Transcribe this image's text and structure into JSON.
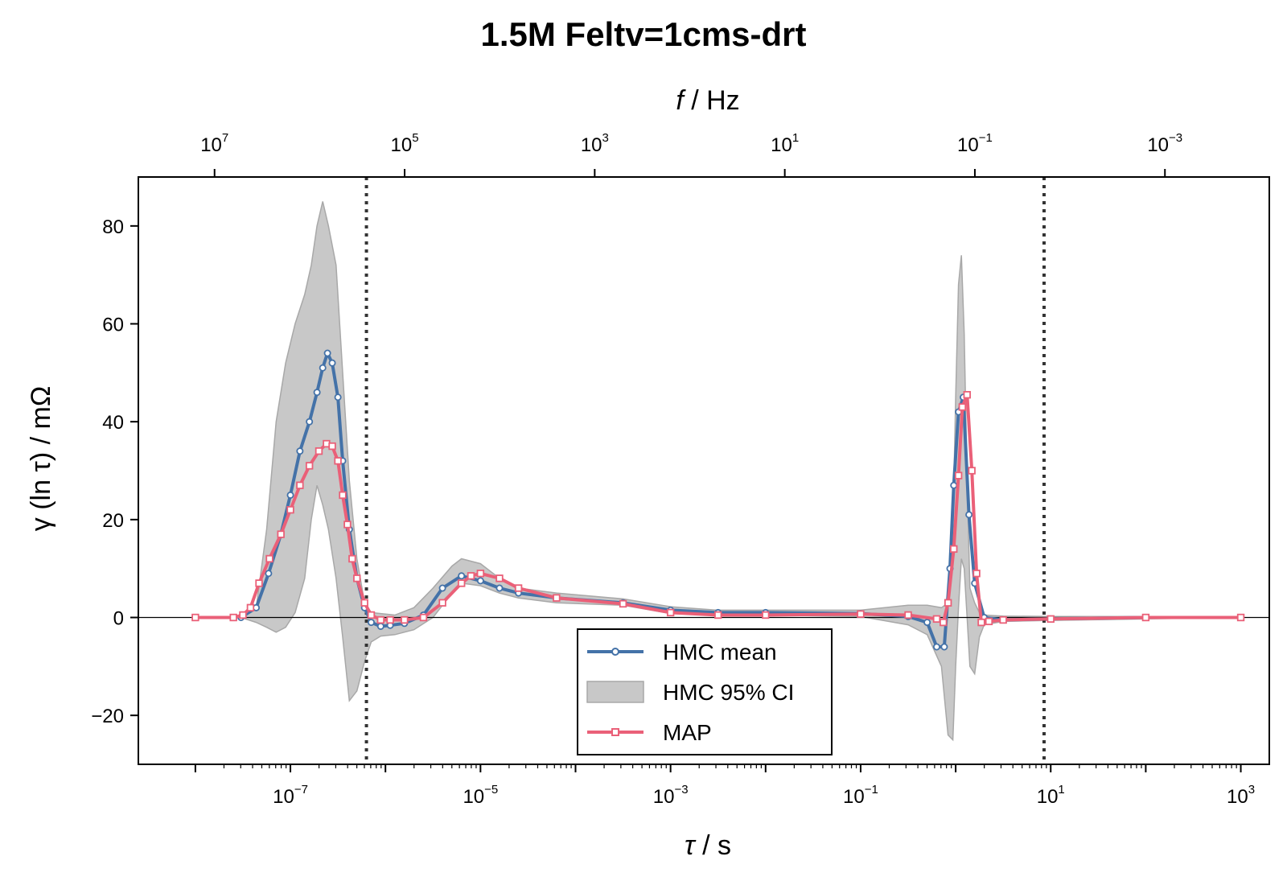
{
  "chart_data": {
    "type": "line",
    "title": "1.5M Feltv=1cms-drt",
    "xlabel_italic": "τ",
    "xlabel_rest": " / s",
    "ylabel": "γ (ln τ) / mΩ",
    "top_xlabel_italic": "f",
    "top_xlabel_rest": " / Hz",
    "x_scale": "log",
    "xlim_log10": [
      -8.6,
      3.3
    ],
    "ylim": [
      -30,
      90
    ],
    "yticks": [
      -20,
      0,
      20,
      40,
      60,
      80
    ],
    "ytick_labels": [
      "−20",
      "0",
      "20",
      "40",
      "60",
      "80"
    ],
    "xtick_exponents": [
      -7,
      -5,
      -3,
      -1,
      1,
      3
    ],
    "top_xtick_exponents": [
      7,
      5,
      3,
      1,
      -1,
      -3
    ],
    "tick_base": "10",
    "vlines_tau_log10": [
      -6.2,
      0.93
    ],
    "zero_line": true,
    "legend_location": "lower center",
    "colors": {
      "hmc_mean": "#4472a8",
      "map": "#ea6078",
      "ci_fill": "#c8c8c8",
      "ci_edge": "#a8a8a8",
      "vline": "#333333"
    },
    "series": [
      {
        "name": "HMC mean",
        "marker": "circle",
        "x_log10": [
          -7.52,
          -7.36,
          -7.23,
          -7.1,
          -7.0,
          -6.9,
          -6.8,
          -6.72,
          -6.66,
          -6.61,
          -6.56,
          -6.5,
          -6.45,
          -6.38,
          -6.3,
          -6.22,
          -6.15,
          -6.05,
          -5.95,
          -5.8,
          -5.6,
          -5.4,
          -5.2,
          -5.0,
          -4.8,
          -4.6,
          -4.2,
          -3.5,
          -3.0,
          -2.5,
          -2.0,
          -1.0,
          -0.5,
          -0.3,
          -0.2,
          -0.12,
          -0.06,
          -0.02,
          0.03,
          0.08,
          0.14,
          0.2,
          0.3,
          0.5,
          1.0,
          2.0,
          3.0
        ],
        "values": [
          0,
          2,
          9,
          17,
          25,
          34,
          40,
          46,
          51,
          54,
          52,
          45,
          32,
          18,
          8,
          2,
          -1,
          -1.8,
          -1.6,
          -1.2,
          0.5,
          6,
          8.5,
          7.5,
          6,
          5,
          4,
          3,
          1.5,
          1,
          1,
          0.8,
          0.2,
          -1,
          -6,
          -6,
          10,
          27,
          42,
          45,
          21,
          7,
          0,
          -0.5,
          -0.3,
          0,
          0
        ]
      },
      {
        "name": "HMC 95% CI",
        "type": "area",
        "x_log10": [
          -7.52,
          -7.36,
          -7.25,
          -7.15,
          -7.05,
          -6.95,
          -6.85,
          -6.78,
          -6.72,
          -6.66,
          -6.6,
          -6.52,
          -6.45,
          -6.38,
          -6.3,
          -6.22,
          -6.15,
          -6.05,
          -5.9,
          -5.7,
          -5.5,
          -5.3,
          -5.2,
          -5.0,
          -4.8,
          -4.6,
          -4.2,
          -3.5,
          -3.0,
          -2.5,
          -2.0,
          -1.0,
          -0.5,
          -0.3,
          -0.15,
          -0.08,
          -0.03,
          0.0,
          0.03,
          0.06,
          0.09,
          0.12,
          0.15,
          0.2,
          0.25,
          0.3,
          0.5,
          1.0,
          2.0,
          3.0
        ],
        "upper": [
          0,
          2,
          18,
          40,
          52,
          60,
          66,
          72,
          80,
          85,
          80,
          72,
          50,
          28,
          12,
          3,
          1,
          0.8,
          0.5,
          2,
          6,
          10.5,
          12,
          11,
          8,
          6,
          5,
          3.8,
          2.2,
          1.5,
          1.5,
          1.5,
          2.5,
          2.5,
          2,
          3,
          18,
          45,
          68,
          74,
          58,
          28,
          6,
          3,
          1,
          0.5,
          0.3,
          0.2,
          0.2,
          0
        ],
        "lower": [
          0,
          -1,
          -2,
          -3,
          -2,
          1,
          8,
          20,
          27,
          23,
          18,
          8,
          -4,
          -17,
          -15,
          -9,
          -5,
          -3.8,
          -3.5,
          -2.5,
          0,
          5,
          7,
          6.5,
          5,
          4,
          3,
          2.5,
          0.8,
          0.5,
          0.5,
          0.2,
          -1.5,
          -3.5,
          -10,
          -24,
          -25,
          -10,
          2,
          12,
          10,
          0,
          -10,
          -11.5,
          -4,
          -1.5,
          -0.8,
          -0.6,
          -0.3,
          0
        ]
      },
      {
        "name": "MAP",
        "marker": "square",
        "x_log10": [
          -8.0,
          -7.6,
          -7.5,
          -7.42,
          -7.33,
          -7.22,
          -7.1,
          -7.0,
          -6.9,
          -6.8,
          -6.7,
          -6.62,
          -6.56,
          -6.5,
          -6.45,
          -6.4,
          -6.35,
          -6.3,
          -6.22,
          -6.15,
          -6.05,
          -5.95,
          -5.8,
          -5.6,
          -5.4,
          -5.2,
          -5.1,
          -5.0,
          -4.8,
          -4.6,
          -4.2,
          -3.5,
          -3.0,
          -2.5,
          -2.0,
          -1.0,
          -0.5,
          -0.2,
          -0.13,
          -0.08,
          -0.02,
          0.03,
          0.07,
          0.12,
          0.17,
          0.22,
          0.27,
          0.35,
          0.5,
          1.0,
          2.0,
          3.0
        ],
        "values": [
          0,
          0,
          0.5,
          2,
          7,
          12,
          17,
          22,
          27,
          31,
          34,
          35.5,
          35,
          32,
          25,
          19,
          12,
          8,
          3,
          0.5,
          -0.5,
          -0.5,
          -0.5,
          0,
          3,
          7,
          8.5,
          9,
          8,
          6,
          4,
          2.8,
          1,
          0.5,
          0.5,
          0.7,
          0.5,
          -0.3,
          -1,
          3,
          14,
          29,
          43,
          45.5,
          30,
          9,
          -1,
          -0.8,
          -0.5,
          -0.3,
          0,
          0
        ]
      }
    ]
  }
}
